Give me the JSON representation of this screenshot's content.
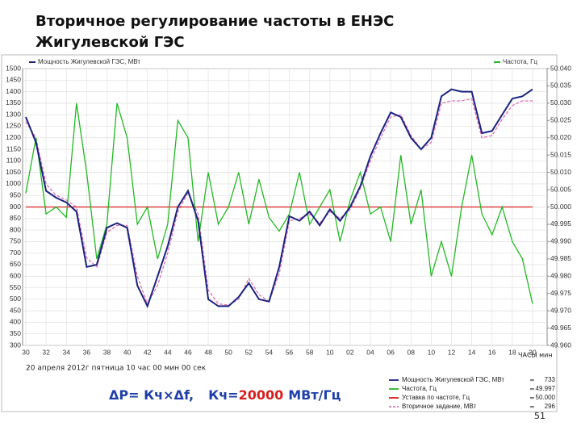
{
  "chart_data": {
    "type": "line",
    "title": "Вторичное регулирование частоты в ЕНЭС",
    "subtitle": "Жигулевской ГЭС",
    "date_label": "20 апреля 2012г пятница 10 час 00 мин 00 сек",
    "x_axis_label": "ЧАСЫ мин",
    "formula": {
      "main": "ΔP= Кч×Δf,",
      "k": "Кч=",
      "k_value": "20000",
      "unit": "МВт/Гц"
    },
    "page_number": "51",
    "categories": [
      "30",
      null,
      "32",
      null,
      "34",
      null,
      "36",
      null,
      "38",
      null,
      "40",
      null,
      "42",
      null,
      "44",
      null,
      "46",
      null,
      "48",
      null,
      "50",
      null,
      "52",
      null,
      "54",
      null,
      "56",
      null,
      "58",
      null,
      "10",
      null,
      "02",
      null,
      "04",
      null,
      "06",
      null,
      "08",
      null,
      "10",
      null,
      "12",
      null,
      "14",
      null,
      "16",
      null,
      "18",
      null,
      "20"
    ],
    "ylim": [
      300,
      1500
    ],
    "yticks": [
      300,
      350,
      400,
      450,
      500,
      550,
      600,
      650,
      700,
      750,
      800,
      850,
      900,
      950,
      1000,
      1050,
      1100,
      1150,
      1200,
      1250,
      1300,
      1350,
      1400,
      1450,
      1500
    ],
    "y2lim": [
      49.96,
      50.04
    ],
    "y2ticks": [
      {
        "value": 49.96,
        "label": "49.960"
      },
      {
        "value": 49.965,
        "label": "49.965"
      },
      {
        "value": 49.97,
        "label": "49.970"
      },
      {
        "value": 49.975,
        "label": "49.975"
      },
      {
        "value": 49.98,
        "label": "49.980"
      },
      {
        "value": 49.985,
        "label": "49.985"
      },
      {
        "value": 49.99,
        "label": "49.990"
      },
      {
        "value": 49.995,
        "label": "49.995"
      },
      {
        "value": 50.0,
        "label": "50.000"
      },
      {
        "value": 50.005,
        "label": "50.005"
      },
      {
        "value": 50.01,
        "label": "50.010"
      },
      {
        "value": 50.015,
        "label": "50.015"
      },
      {
        "value": 50.02,
        "label": "50.020"
      },
      {
        "value": 50.025,
        "label": "50.025"
      },
      {
        "value": 50.03,
        "label": "50.030"
      },
      {
        "value": 50.035,
        "label": "50.035"
      },
      {
        "value": 50.04,
        "label": "50.040"
      }
    ],
    "grid": true,
    "series": [
      {
        "name": "Мощность Жигулевской ГЭС, МВт",
        "top_name": "Мощность Жигулевской ГЭС, МВт",
        "legend_value": "733",
        "color": "#1a237e",
        "values": [
          1290,
          1180,
          970,
          940,
          920,
          880,
          640,
          650,
          810,
          830,
          810,
          560,
          470,
          600,
          730,
          900,
          970,
          840,
          500,
          470,
          470,
          510,
          570,
          500,
          490,
          640,
          860,
          840,
          880,
          820,
          890,
          840,
          900,
          990,
          1120,
          1220,
          1310,
          1290,
          1200,
          1150,
          1200,
          1380,
          1410,
          1400,
          1400,
          1220,
          1230,
          1300,
          1370,
          1380,
          1410
        ]
      },
      {
        "name": "Частота, Гц",
        "top_name": "Частота, Гц",
        "legend_value": "49.997",
        "color": "#22b822",
        "axis": "y2",
        "values": [
          50.004,
          50.02,
          49.998,
          50.0,
          49.997,
          50.03,
          50.01,
          49.985,
          49.995,
          50.03,
          50.02,
          49.995,
          50.0,
          49.985,
          49.995,
          50.025,
          50.02,
          49.99,
          50.01,
          49.995,
          50.0,
          50.01,
          49.995,
          50.008,
          49.997,
          49.993,
          49.998,
          50.01,
          49.995,
          50.0,
          50.005,
          49.99,
          50.002,
          50.01,
          49.998,
          50.0,
          49.99,
          50.015,
          49.995,
          50.005,
          49.98,
          49.99,
          49.98,
          50.0,
          50.015,
          49.998,
          49.992,
          50.0,
          49.99,
          49.985,
          49.972
        ]
      },
      {
        "name": "Уставка по частоте, Гц",
        "legend_value": "50.000",
        "color": "#d62020",
        "axis": "y2",
        "values": [
          50,
          50,
          50,
          50,
          50,
          50,
          50,
          50,
          50,
          50,
          50,
          50,
          50,
          50,
          50,
          50,
          50,
          50,
          50,
          50,
          50,
          50,
          50,
          50,
          50,
          50,
          50,
          50,
          50,
          50,
          50,
          50,
          50,
          50,
          50,
          50,
          50,
          50,
          50,
          50,
          50,
          50,
          50,
          50,
          50,
          50,
          50,
          50,
          50,
          50,
          50
        ]
      },
      {
        "name": "Вторичное задание, МВт",
        "legend_value": "296",
        "color": "#e070b8",
        "dashed": true,
        "values": [
          1270,
          1200,
          1000,
          950,
          930,
          900,
          680,
          640,
          790,
          820,
          820,
          600,
          480,
          560,
          700,
          880,
          960,
          870,
          540,
          480,
          475,
          500,
          590,
          520,
          490,
          610,
          840,
          850,
          870,
          830,
          880,
          850,
          890,
          980,
          1100,
          1200,
          1290,
          1300,
          1210,
          1150,
          1180,
          1350,
          1360,
          1360,
          1370,
          1200,
          1210,
          1280,
          1340,
          1360,
          1360
        ]
      }
    ]
  }
}
